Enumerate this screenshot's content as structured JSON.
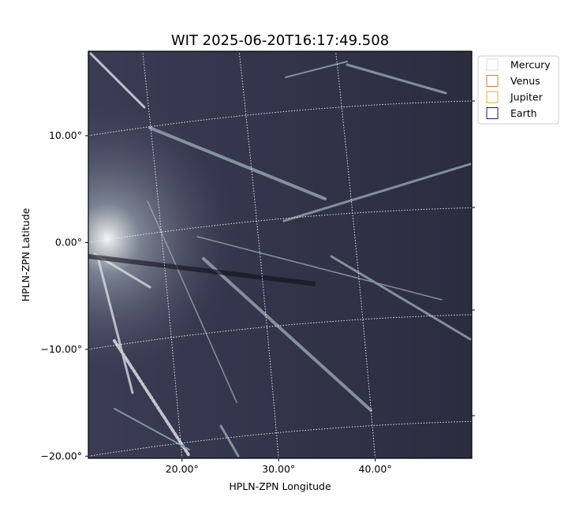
{
  "chart_data": {
    "type": "image",
    "title": "WIT 2025-06-20T16:17:49.508",
    "x_label": "HPLN-ZPN Longitude",
    "y_label": "HPLN-ZPN Latitude",
    "xlim": [
      10.3,
      50.0
    ],
    "ylim": [
      -20.2,
      17.9
    ],
    "xticks": [
      {
        "value": 20,
        "label": "20.00°"
      },
      {
        "value": 30,
        "label": "30.00°"
      },
      {
        "value": 40,
        "label": "40.00°"
      }
    ],
    "yticks": [
      {
        "value": -20,
        "label": "−20.00°"
      },
      {
        "value": -10,
        "label": "−10.00°"
      },
      {
        "value": 0,
        "label": "0.00°"
      },
      {
        "value": 10,
        "label": "10.00°"
      }
    ],
    "grid": true,
    "legend_position": "outside-upper-right",
    "series": [
      {
        "name": "Mercury",
        "color": "#dddddd"
      },
      {
        "name": "Venus",
        "color": "#e07a30"
      },
      {
        "name": "Jupiter",
        "color": "#e8b020"
      },
      {
        "name": "Earth",
        "color": "#1a1a80"
      }
    ]
  }
}
